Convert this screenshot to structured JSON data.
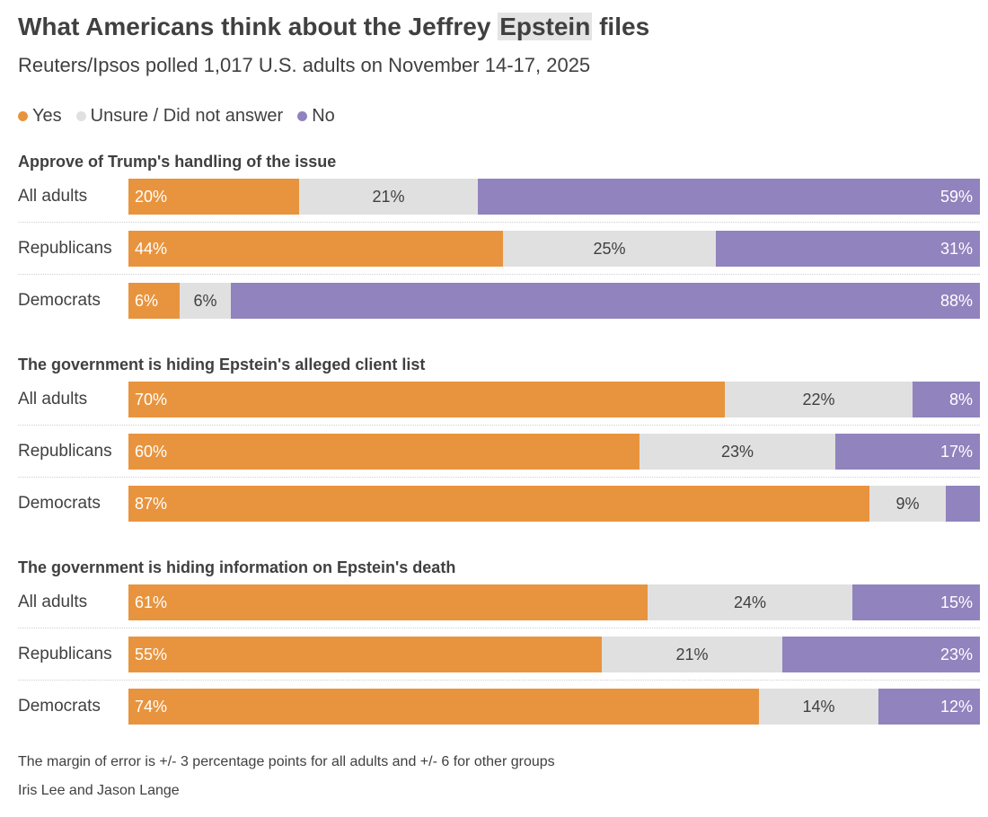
{
  "title": {
    "before": "What Americans think about the Jeffrey ",
    "highlight": "Epstein",
    "after": " files"
  },
  "subtitle": "Reuters/Ipsos polled 1,017 U.S. adults on November 14-17, 2025",
  "legend": [
    {
      "label": "Yes",
      "color": "#e8943e"
    },
    {
      "label": "Unsure / Did not answer",
      "color": "#e0e0e0"
    },
    {
      "label": "No",
      "color": "#9183bd"
    }
  ],
  "footnote": "The margin of error is +/- 3 percentage points for all adults and +/- 6 for other groups",
  "credit": "Iris Lee and Jason Lange",
  "chart_data": {
    "type": "bar",
    "stacked": true,
    "orientation": "horizontal",
    "unit": "%",
    "series_names": [
      "Yes",
      "Unsure / Did not answer",
      "No"
    ],
    "groups": [
      {
        "title": "Approve of Trump's handling of the issue",
        "rows": [
          {
            "label": "All adults",
            "values": [
              20,
              21,
              59
            ],
            "labels": [
              "20%",
              "21%",
              "59%"
            ]
          },
          {
            "label": "Republicans",
            "values": [
              44,
              25,
              31
            ],
            "labels": [
              "44%",
              "25%",
              "31%"
            ]
          },
          {
            "label": "Democrats",
            "values": [
              6,
              6,
              88
            ],
            "labels": [
              "6%",
              "6%",
              "88%"
            ]
          }
        ]
      },
      {
        "title": "The government is hiding Epstein's alleged client list",
        "rows": [
          {
            "label": "All adults",
            "values": [
              70,
              22,
              8
            ],
            "labels": [
              "70%",
              "22%",
              "8%"
            ]
          },
          {
            "label": "Republicans",
            "values": [
              60,
              23,
              17
            ],
            "labels": [
              "60%",
              "23%",
              "17%"
            ]
          },
          {
            "label": "Democrats",
            "values": [
              87,
              9,
              4
            ],
            "labels": [
              "87%",
              "9%",
              ""
            ]
          }
        ]
      },
      {
        "title": "The government is hiding information on Epstein's death",
        "rows": [
          {
            "label": "All adults",
            "values": [
              61,
              24,
              15
            ],
            "labels": [
              "61%",
              "24%",
              "15%"
            ]
          },
          {
            "label": "Republicans",
            "values": [
              55,
              21,
              23
            ],
            "labels": [
              "55%",
              "21%",
              "23%"
            ]
          },
          {
            "label": "Democrats",
            "values": [
              74,
              14,
              12
            ],
            "labels": [
              "74%",
              "14%",
              "12%"
            ]
          }
        ]
      }
    ]
  }
}
